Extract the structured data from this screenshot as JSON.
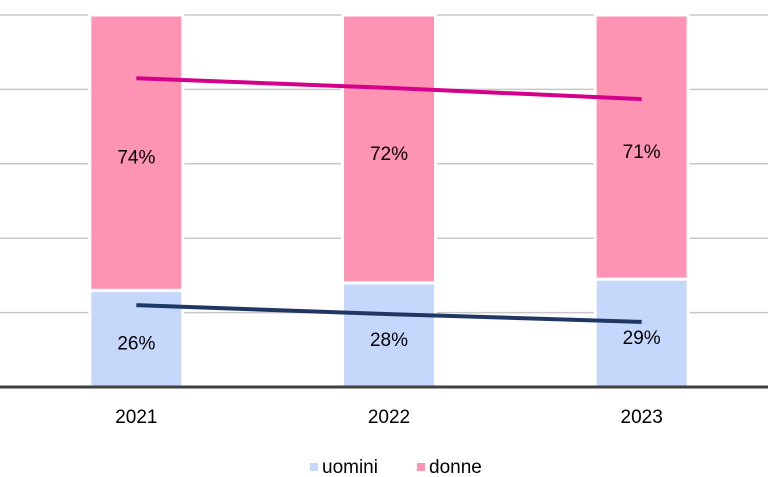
{
  "chart_data": {
    "type": "stacked_bar",
    "categories": [
      "2021",
      "2022",
      "2023"
    ],
    "series": [
      {
        "name": "uomini",
        "color": "#c5d8fc",
        "values": [
          26,
          28,
          29
        ],
        "value_labels": [
          "26%",
          "28%",
          "29%"
        ]
      },
      {
        "name": "donne",
        "color": "#fe93b4",
        "values": [
          74,
          72,
          71
        ],
        "value_labels": [
          "74%",
          "72%",
          "71%"
        ]
      }
    ],
    "lines": [
      {
        "color": "#d4008c",
        "values": [
          83,
          80.4,
          77.4
        ]
      },
      {
        "color": "#1f3762",
        "values": [
          22,
          19.6,
          17.5
        ]
      }
    ],
    "ylim": [
      0,
      100
    ],
    "yticks": [
      0,
      20,
      40,
      60,
      80,
      100
    ],
    "grid": true,
    "legend": "bottom"
  }
}
